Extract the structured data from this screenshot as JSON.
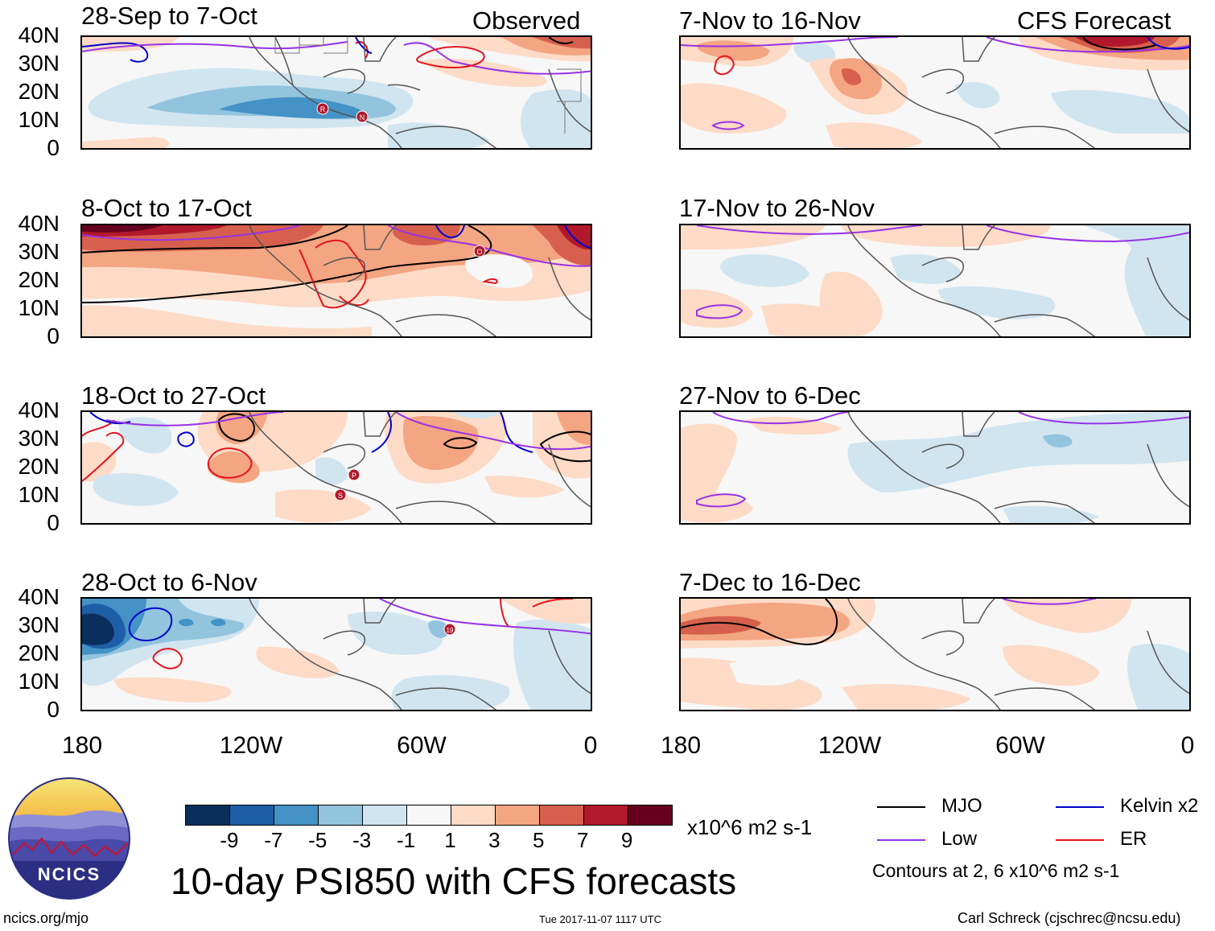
{
  "panels": [
    {
      "title": "28-Sep to 7-Oct",
      "tag": "Observed",
      "storms": [
        "R",
        "N"
      ]
    },
    {
      "title": "8-Oct to 17-Oct",
      "tag": "",
      "storms": [
        "O"
      ]
    },
    {
      "title": "18-Oct to 27-Oct",
      "tag": "",
      "storms": [
        "P",
        "S"
      ]
    },
    {
      "title": "28-Oct to 6-Nov",
      "tag": "",
      "storms": [
        "19"
      ]
    },
    {
      "title": "7-Nov to 16-Nov",
      "tag": "CFS Forecast",
      "storms": []
    },
    {
      "title": "17-Nov to 26-Nov",
      "tag": "",
      "storms": []
    },
    {
      "title": "27-Nov to 6-Dec",
      "tag": "",
      "storms": []
    },
    {
      "title": "7-Dec to 16-Dec",
      "tag": "",
      "storms": []
    }
  ],
  "lat_labels": [
    "40N",
    "30N",
    "20N",
    "10N",
    "0"
  ],
  "lon_labels": [
    "180",
    "120W",
    "60W",
    "0"
  ],
  "colorbar": {
    "labels": [
      "-9",
      "-7",
      "-5",
      "-3",
      "-1",
      "1",
      "3",
      "5",
      "7",
      "9"
    ],
    "colors": [
      "#0b2f5d",
      "#1d5ea6",
      "#4492c6",
      "#92c4de",
      "#d1e5f0",
      "#f7f7f7",
      "#fddbc7",
      "#f4a582",
      "#d6604d",
      "#b2182b",
      "#67001f"
    ],
    "units": "x10^6 m2 s-1"
  },
  "legend": {
    "items": [
      {
        "label": "MJO",
        "color": "#000000"
      },
      {
        "label": "Kelvin x2",
        "color": "#0000cc"
      },
      {
        "label": "Low",
        "color": "#9932e6"
      },
      {
        "label": "ER",
        "color": "#e6141e"
      }
    ],
    "note": "Contours at 2, 6 x10^6 m2 s-1"
  },
  "title": "10-day PSI850 with CFS forecasts",
  "logo_text": "NCICS",
  "footer": {
    "left": "ncics.org/mjo",
    "center": "Tue 2017-11-07 1117 UTC",
    "right": "Carl Schreck (cjschrec@ncsu.edu)"
  }
}
